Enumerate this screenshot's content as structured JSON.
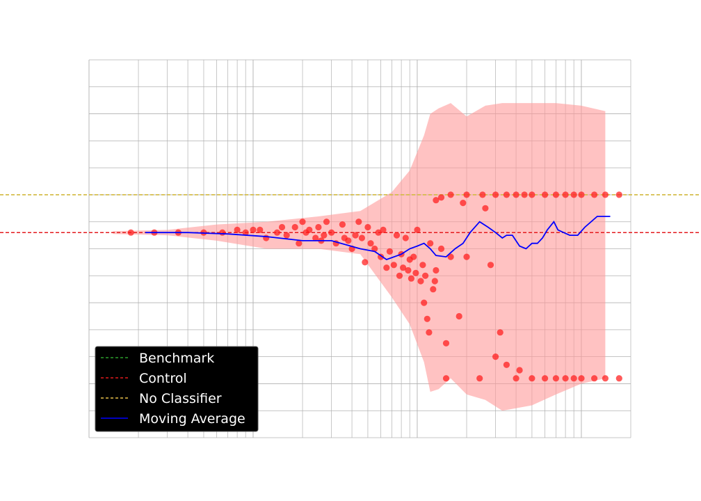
{
  "chart_data": {
    "type": "scatter",
    "title": "",
    "xlabel": "",
    "ylabel": "",
    "x_scale": "log",
    "xlim": [
      1,
      2000
    ],
    "ylim": [
      -0.8,
      0.6
    ],
    "grid": true,
    "legend_position": "lower-left",
    "legend": [
      {
        "label": "Benchmark",
        "color": "#2ca02c",
        "style": "dashed"
      },
      {
        "label": "Control",
        "color": "#e31a1c",
        "style": "dashed"
      },
      {
        "label": "No Classifier",
        "color": "#e8c04a",
        "style": "dashed"
      },
      {
        "label": "Moving Average",
        "color": "#0000ff",
        "style": "solid"
      }
    ],
    "reference_lines": [
      {
        "name": "Benchmark",
        "y": 0.1,
        "color": "#2ca02c"
      },
      {
        "name": "No Classifier",
        "y": 0.1,
        "color": "#e8c04a"
      },
      {
        "name": "Control",
        "y": -0.04,
        "color": "#e31a1c"
      }
    ],
    "band": {
      "color": "#ff9a9a",
      "x": [
        1.4,
        3,
        6,
        12,
        25,
        45,
        70,
        90,
        110,
        120,
        135,
        160,
        200,
        260,
        330,
        500,
        700,
        1000,
        1400
      ],
      "upper": [
        -0.035,
        -0.03,
        -0.01,
        0.0,
        0.02,
        0.04,
        0.11,
        0.19,
        0.32,
        0.4,
        0.42,
        0.44,
        0.39,
        0.43,
        0.44,
        0.44,
        0.44,
        0.43,
        0.41
      ],
      "lower": [
        -0.045,
        -0.05,
        -0.07,
        -0.1,
        -0.1,
        -0.12,
        -0.28,
        -0.38,
        -0.52,
        -0.63,
        -0.62,
        -0.58,
        -0.64,
        -0.66,
        -0.7,
        -0.68,
        -0.64,
        -0.6,
        -0.58
      ]
    },
    "moving_average": {
      "name": "Moving Average",
      "x": [
        2.2,
        4,
        7,
        12,
        20,
        30,
        45,
        55,
        65,
        80,
        90,
        100,
        110,
        120,
        130,
        150,
        170,
        190,
        210,
        240,
        270,
        300,
        330,
        350,
        380,
        420,
        460,
        500,
        540,
        580,
        620,
        680,
        720,
        780,
        850,
        950,
        1050,
        1250,
        1500
      ],
      "y": [
        -0.04,
        -0.04,
        -0.045,
        -0.055,
        -0.07,
        -0.07,
        -0.1,
        -0.11,
        -0.14,
        -0.12,
        -0.1,
        -0.09,
        -0.08,
        -0.1,
        -0.125,
        -0.13,
        -0.1,
        -0.08,
        -0.04,
        -0.0,
        -0.02,
        -0.04,
        -0.06,
        -0.05,
        -0.05,
        -0.09,
        -0.1,
        -0.08,
        -0.08,
        -0.06,
        -0.03,
        0.0,
        -0.03,
        -0.04,
        -0.05,
        -0.05,
        -0.02,
        0.02,
        0.02
      ]
    },
    "series": [
      {
        "name": "scatter",
        "x": [
          1.8,
          2.5,
          3.5,
          5,
          6.5,
          8,
          9,
          10,
          11,
          12,
          14,
          15,
          16,
          18,
          19,
          20,
          21,
          22,
          24,
          25,
          26,
          27,
          28,
          30,
          32,
          35,
          36,
          38,
          40,
          42,
          44,
          46,
          48,
          50,
          52,
          55,
          58,
          60,
          62,
          65,
          68,
          72,
          75,
          78,
          80,
          82,
          85,
          88,
          90,
          92,
          95,
          98,
          100,
          105,
          108,
          110,
          112,
          115,
          118,
          120,
          125,
          128,
          130,
          140,
          150,
          160,
          180,
          200,
          240,
          280,
          300,
          350,
          400,
          500,
          600,
          700,
          800,
          900,
          1000,
          1200,
          1400,
          1700,
          130,
          140,
          160,
          200,
          250,
          300,
          350,
          400,
          450,
          500,
          600,
          700,
          800,
          900,
          1000,
          1200,
          1400,
          1700,
          150,
          320,
          190,
          420,
          260
        ],
        "y": [
          -0.04,
          -0.04,
          -0.04,
          -0.04,
          -0.04,
          -0.03,
          -0.04,
          -0.03,
          -0.03,
          -0.06,
          -0.04,
          -0.02,
          -0.05,
          -0.02,
          -0.08,
          0.0,
          -0.04,
          -0.03,
          -0.06,
          -0.02,
          -0.07,
          -0.05,
          0.0,
          -0.04,
          -0.08,
          -0.01,
          -0.06,
          -0.07,
          -0.1,
          -0.05,
          0.0,
          -0.06,
          -0.15,
          -0.02,
          -0.08,
          -0.1,
          -0.04,
          -0.13,
          -0.03,
          -0.17,
          -0.11,
          -0.16,
          -0.05,
          -0.2,
          -0.12,
          -0.17,
          -0.06,
          -0.18,
          -0.14,
          -0.21,
          -0.13,
          -0.19,
          -0.03,
          -0.22,
          -0.16,
          -0.3,
          -0.2,
          -0.36,
          -0.41,
          -0.08,
          -0.25,
          -0.22,
          -0.18,
          -0.1,
          -0.45,
          -0.13,
          -0.35,
          -0.13,
          -0.58,
          -0.16,
          -0.5,
          -0.53,
          -0.58,
          -0.58,
          -0.58,
          -0.58,
          -0.58,
          -0.58,
          -0.58,
          -0.58,
          -0.58,
          -0.58,
          0.08,
          0.09,
          0.1,
          0.1,
          0.1,
          0.1,
          0.1,
          0.1,
          0.1,
          0.1,
          0.1,
          0.1,
          0.1,
          0.1,
          0.1,
          0.1,
          0.1,
          0.1,
          -0.58,
          -0.41,
          0.07,
          -0.55,
          0.05
        ]
      }
    ]
  }
}
